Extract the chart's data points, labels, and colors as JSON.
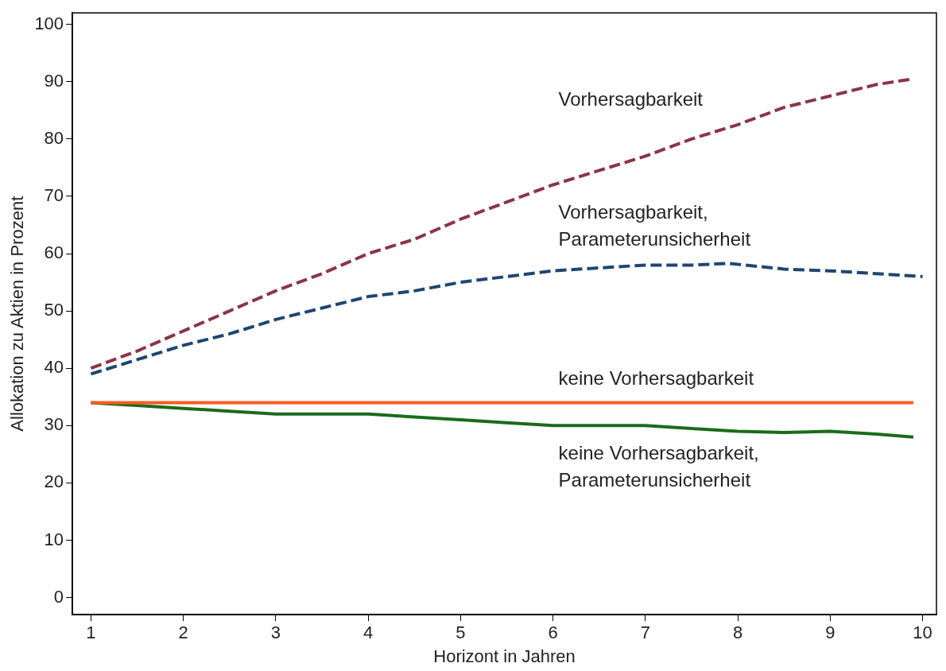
{
  "chart_data": {
    "type": "line",
    "xlabel": "Horizont in Jahren",
    "ylabel": "Allokation zu Aktien in Prozent",
    "xlim": [
      0.8,
      10.15
    ],
    "xticks": [
      1,
      2,
      3,
      4,
      5,
      6,
      7,
      8,
      9,
      10
    ],
    "ylim": [
      -3,
      102
    ],
    "yticks": [
      0,
      10,
      20,
      30,
      40,
      50,
      60,
      70,
      80,
      90,
      100
    ],
    "grid": false,
    "legend": false,
    "marker": "none",
    "series": [
      {
        "name": "Vorhersagbarkeit",
        "color": "#8b3545",
        "line_style": "dashed",
        "x": [
          1,
          1.5,
          2,
          2.5,
          3,
          3.5,
          4,
          4.5,
          5,
          5.5,
          6,
          6.5,
          7,
          7.5,
          8,
          8.5,
          9,
          9.5,
          9.9
        ],
        "values": [
          40,
          43,
          46.5,
          50,
          53.5,
          56.5,
          60,
          62.5,
          66,
          69,
          72,
          74.5,
          77,
          80,
          82.5,
          85.5,
          87.5,
          89.5,
          90.5
        ]
      },
      {
        "name": "Vorhersagbarkeit,\nParameterunsicherheit",
        "color": "#1f4670",
        "line_style": "dashed",
        "x": [
          1,
          1.5,
          2,
          2.5,
          3,
          3.5,
          4,
          4.5,
          5,
          5.5,
          6,
          6.5,
          7,
          7.5,
          7.9,
          8.5,
          9,
          9.5,
          10
        ],
        "values": [
          39,
          41.5,
          44,
          46,
          48.5,
          50.5,
          52.5,
          53.5,
          55,
          56,
          57,
          57.5,
          58,
          58,
          58.3,
          57.3,
          57,
          56.5,
          56
        ]
      },
      {
        "name": "keine Vorhersagbarkeit",
        "color": "#ff5a1f",
        "line_style": "solid",
        "x": [
          1,
          9.9
        ],
        "values": [
          34,
          34
        ]
      },
      {
        "name": "keine Vorhersagbarkeit,\nParameterunsicherheit",
        "color": "#1a6b1a",
        "line_style": "solid",
        "x": [
          1,
          1.5,
          2,
          2.5,
          3,
          3.5,
          4,
          4.5,
          5,
          5.5,
          6,
          6.5,
          7,
          7.5,
          8,
          8.5,
          9,
          9.5,
          9.9
        ],
        "values": [
          34,
          33.5,
          33,
          32.5,
          32,
          32,
          32,
          31.5,
          31,
          30.5,
          30,
          30,
          30,
          29.5,
          29,
          28.8,
          29,
          28.5,
          28
        ]
      }
    ]
  }
}
